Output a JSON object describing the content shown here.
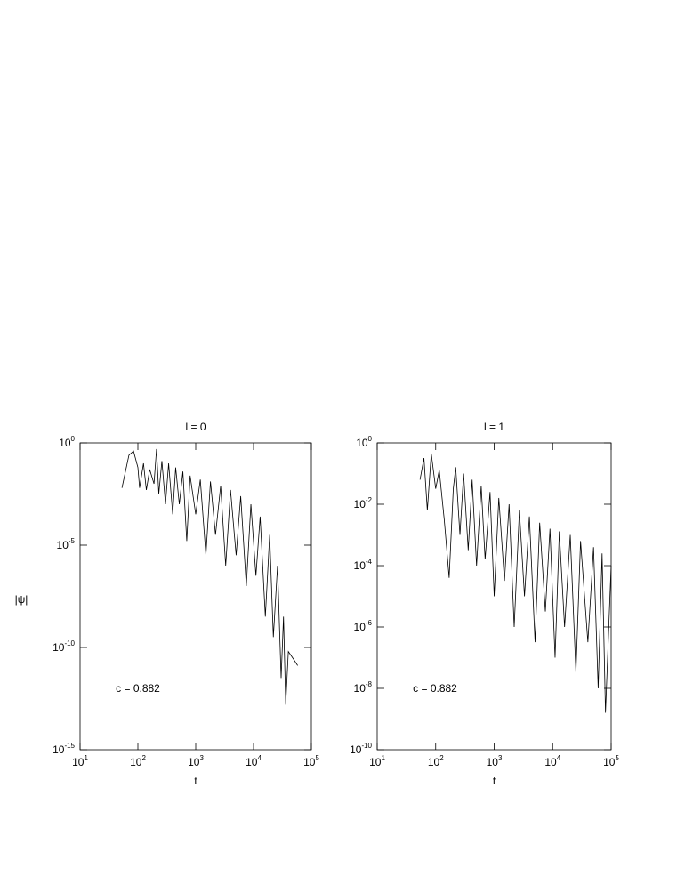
{
  "chart_data": [
    {
      "type": "line",
      "title": "l = 0",
      "xlabel": "t",
      "ylabel": "|ψ|",
      "annotation": "c = 0.882",
      "log_x": true,
      "log_y": true,
      "color": "#000000",
      "xlim": [
        10,
        100000
      ],
      "ylim": [
        1e-15,
        1
      ],
      "xticks": [
        {
          "value": 10,
          "label": "10",
          "sup": "1"
        },
        {
          "value": 100,
          "label": "10",
          "sup": "2"
        },
        {
          "value": 1000,
          "label": "10",
          "sup": "3"
        },
        {
          "value": 10000,
          "label": "10",
          "sup": "4"
        },
        {
          "value": 100000,
          "label": "10",
          "sup": "5"
        }
      ],
      "yticks": [
        {
          "value": 1e-15,
          "label": "10",
          "sup": "-15"
        },
        {
          "value": 1e-10,
          "label": "10",
          "sup": "-10"
        },
        {
          "value": 1e-05,
          "label": "10",
          "sup": "-5"
        },
        {
          "value": 1,
          "label": "10",
          "sup": "0"
        }
      ],
      "x": [
        53,
        70,
        84,
        100,
        107,
        125,
        140,
        160,
        190,
        210,
        230,
        260,
        300,
        340,
        400,
        450,
        520,
        600,
        700,
        800,
        1000,
        1200,
        1500,
        1800,
        2200,
        2700,
        3300,
        4000,
        5000,
        6000,
        7500,
        9000,
        11000,
        13000,
        16000,
        19000,
        22000,
        26000,
        30000,
        33000,
        36000,
        40000,
        50000,
        58000
      ],
      "values": [
        0.0063,
        0.25,
        0.4,
        0.063,
        0.0063,
        0.1,
        0.005,
        0.05,
        0.01,
        0.5,
        0.0032,
        0.13,
        0.001,
        0.1,
        0.00032,
        0.063,
        0.001,
        0.04,
        1.6e-05,
        0.025,
        0.00032,
        0.016,
        3.2e-06,
        0.013,
        3.2e-05,
        0.008,
        1e-06,
        0.005,
        3.2e-06,
        0.0025,
        1e-07,
        0.001,
        3.2e-07,
        0.00025,
        3.2e-09,
        3.2e-05,
        3.2e-10,
        1e-06,
        3.2e-12,
        3.2e-09,
        1.6e-13,
        6.3e-11,
        2.5e-11,
        1.3e-11
      ]
    },
    {
      "type": "line",
      "title": "l = 1",
      "xlabel": "t",
      "annotation": "c = 0.882",
      "log_x": true,
      "log_y": true,
      "color": "#000000",
      "xlim": [
        10,
        100000
      ],
      "ylim": [
        1e-10,
        1
      ],
      "xticks": [
        {
          "value": 10,
          "label": "10",
          "sup": "1"
        },
        {
          "value": 100,
          "label": "10",
          "sup": "2"
        },
        {
          "value": 1000,
          "label": "10",
          "sup": "3"
        },
        {
          "value": 10000,
          "label": "10",
          "sup": "4"
        },
        {
          "value": 100000,
          "label": "10",
          "sup": "5"
        }
      ],
      "yticks": [
        {
          "value": 1e-10,
          "label": "10",
          "sup": "-10"
        },
        {
          "value": 1e-08,
          "label": "10",
          "sup": "-8"
        },
        {
          "value": 1e-06,
          "label": "10",
          "sup": "-6"
        },
        {
          "value": 0.0001,
          "label": "10",
          "sup": "-4"
        },
        {
          "value": 0.01,
          "label": "10",
          "sup": "-2"
        },
        {
          "value": 1,
          "label": "10",
          "sup": "0"
        }
      ],
      "x": [
        54,
        63,
        72,
        84,
        100,
        115,
        140,
        170,
        200,
        220,
        260,
        300,
        360,
        420,
        500,
        600,
        700,
        850,
        1000,
        1200,
        1500,
        1800,
        2200,
        2700,
        3300,
        4000,
        5000,
        6000,
        7500,
        9000,
        11000,
        13000,
        16000,
        20000,
        25000,
        30000,
        40000,
        50000,
        60000,
        70000,
        80000,
        100000
      ],
      "values": [
        0.063,
        0.32,
        0.0063,
        0.45,
        0.032,
        0.13,
        0.0032,
        4e-05,
        0.032,
        0.16,
        0.001,
        0.1,
        0.00032,
        0.063,
        0.0001,
        0.04,
        0.00016,
        0.025,
        1e-05,
        0.016,
        3.2e-05,
        0.01,
        1e-06,
        0.0063,
        1e-05,
        0.004,
        3.2e-07,
        0.0025,
        3.2e-06,
        0.0016,
        1e-07,
        0.0013,
        1e-06,
        0.001,
        3.2e-08,
        0.00063,
        3.2e-07,
        0.0004,
        1e-08,
        0.00025,
        1.6e-09,
        0.0001
      ]
    }
  ]
}
